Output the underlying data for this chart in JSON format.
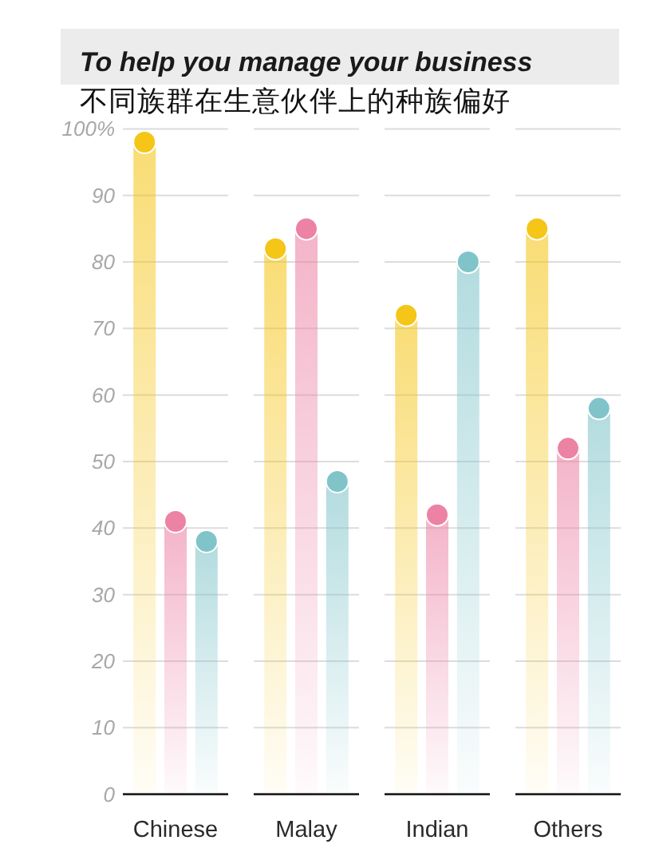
{
  "chart_data": {
    "type": "lollipop",
    "title": "To help you manage your business",
    "subtitle": "不同族群在生意伙伴上的种族偏好",
    "categories": [
      "Chinese",
      "Malay",
      "Indian",
      "Others"
    ],
    "series": [
      {
        "color": "#f5c518",
        "values": [
          98,
          82,
          72,
          85
        ]
      },
      {
        "color": "#ec82a4",
        "values": [
          41,
          85,
          42,
          52
        ]
      },
      {
        "color": "#80c4ca",
        "values": [
          38,
          47,
          80,
          58
        ]
      }
    ],
    "ylim": [
      0,
      100
    ],
    "yticks": [
      0,
      10,
      20,
      30,
      40,
      50,
      60,
      70,
      80,
      90,
      {
        "value": 100,
        "label": "100%"
      }
    ],
    "grid": "y",
    "marker": "circle"
  }
}
